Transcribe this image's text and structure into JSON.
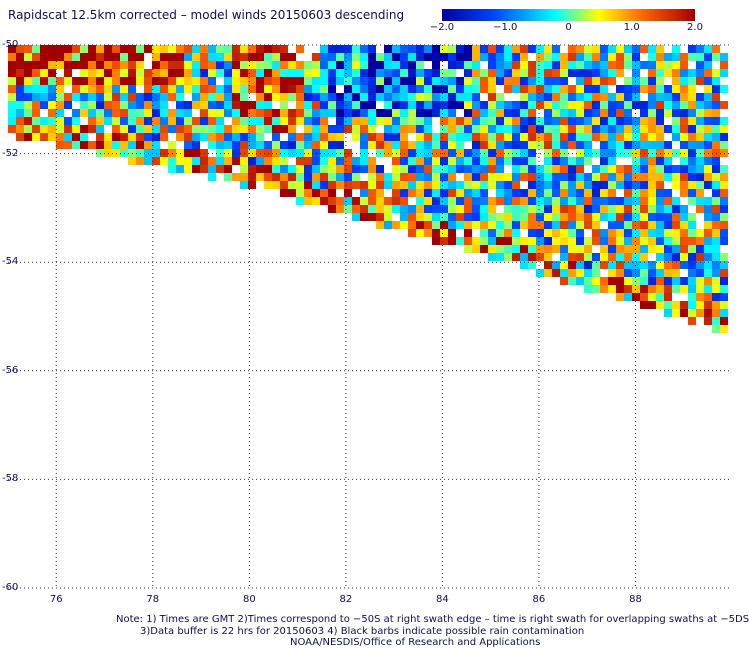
{
  "title": "Rapidscat 12.5km corrected – model winds 20150603 descending",
  "colorbar": {
    "ticks": [
      "−2.0",
      "−1.0",
      "0",
      "1.0",
      "2.0"
    ],
    "tick_values": [
      -2.0,
      -1.0,
      0,
      1.0,
      2.0
    ],
    "range": [
      -2.0,
      2.0
    ],
    "colors": [
      "#0000a0",
      "#0040ff",
      "#00ffff",
      "#ffff00",
      "#ff6000",
      "#a00000"
    ]
  },
  "map": {
    "lat_labels": [
      "-50",
      "-52",
      "-54",
      "-56",
      "-58",
      "-60"
    ],
    "lat_values": [
      -50,
      -52,
      -54,
      -56,
      -58,
      -60
    ],
    "lon_labels": [
      "76",
      "78",
      "80",
      "82",
      "84",
      "86",
      "88"
    ],
    "lon_values": [
      76,
      78,
      80,
      82,
      84,
      86,
      88
    ],
    "lon_range": [
      75.0,
      90.0
    ],
    "lat_range": [
      -50.0,
      -60.0
    ],
    "grid": "dotted"
  },
  "notes": [
    "Note: 1) Times are GMT 2)Times correspond to −50S at right swath edge – time is right swath for overlapping swaths at −5DS",
    "3)Data buffer is 22 hrs for 20150603 4) Black barbs indicate possible rain contamination",
    "NOAA/NESDIS/Office of Research and Applications"
  ]
}
